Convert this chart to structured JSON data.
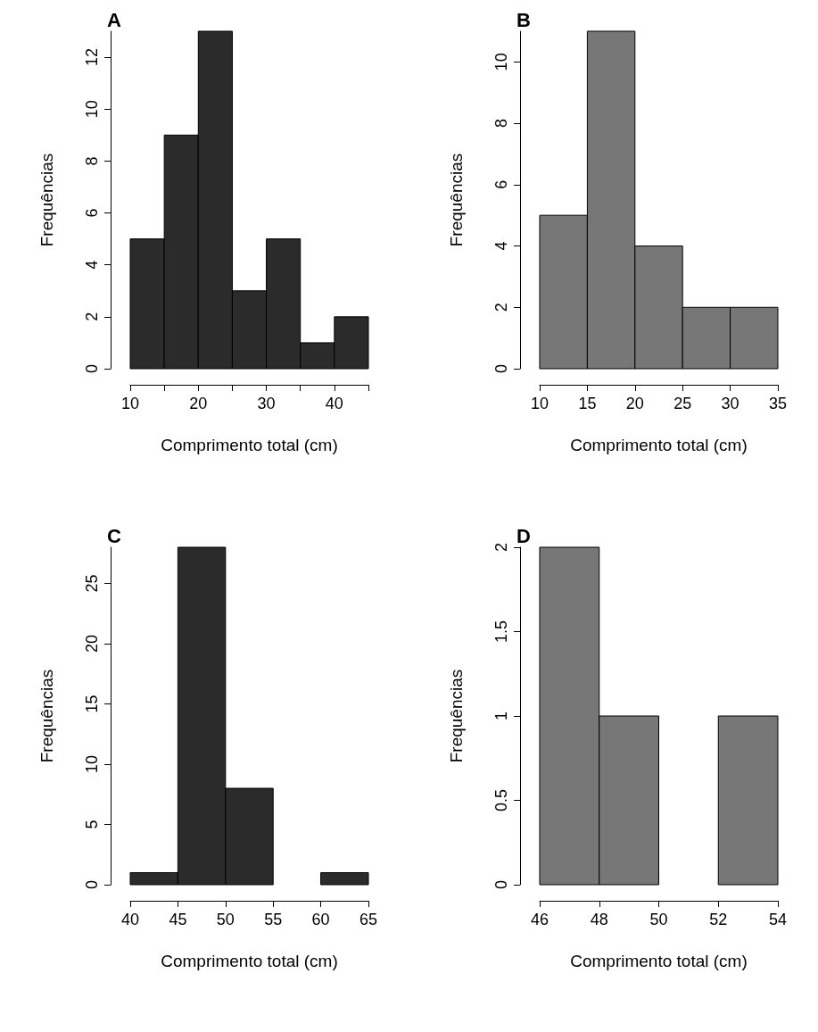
{
  "chart_data": [
    {
      "type": "histogram",
      "title": "A",
      "xlabel": "Comprimento total (cm)",
      "ylabel": "Frequências",
      "color": "#2b2b2b",
      "bins": [
        10,
        15,
        20,
        25,
        30,
        35,
        40,
        45
      ],
      "values": [
        5,
        9,
        13,
        3,
        5,
        1,
        2
      ],
      "xlim": [
        10,
        45
      ],
      "xticks": [
        10,
        20,
        30,
        40
      ],
      "ylim": [
        0,
        13
      ],
      "yticks": [
        0,
        2,
        4,
        6,
        8,
        10,
        12
      ],
      "grid": false
    },
    {
      "type": "histogram",
      "title": "B",
      "xlabel": "Comprimento total (cm)",
      "ylabel": "Frequências",
      "color": "#777777",
      "bins": [
        10,
        15,
        20,
        25,
        30,
        35
      ],
      "values": [
        5,
        11,
        4,
        2,
        2
      ],
      "xlim": [
        10,
        35
      ],
      "xticks": [
        10,
        15,
        20,
        25,
        30,
        35
      ],
      "ylim": [
        0,
        11
      ],
      "yticks": [
        0,
        2,
        4,
        6,
        8,
        10
      ],
      "grid": false
    },
    {
      "type": "histogram",
      "title": "C",
      "xlabel": "Comprimento total (cm)",
      "ylabel": "Frequências",
      "color": "#2b2b2b",
      "bins": [
        40,
        45,
        50,
        55,
        60,
        65
      ],
      "values": [
        1,
        28,
        8,
        0,
        1
      ],
      "xlim": [
        40,
        65
      ],
      "xticks": [
        40,
        45,
        50,
        55,
        60,
        65
      ],
      "ylim": [
        0,
        28
      ],
      "yticks": [
        0,
        5,
        10,
        15,
        20,
        25
      ],
      "grid": false
    },
    {
      "type": "histogram",
      "title": "D",
      "xlabel": "Comprimento total (cm)",
      "ylabel": "Frequências",
      "color": "#777777",
      "bins": [
        46,
        48,
        50,
        52,
        54
      ],
      "values": [
        2,
        1,
        0,
        1
      ],
      "xlim": [
        46,
        54
      ],
      "xticks": [
        46,
        48,
        50,
        52,
        54
      ],
      "ylim": [
        0,
        2
      ],
      "yticks": [
        0,
        0.5,
        1,
        1.5,
        2
      ],
      "grid": false
    }
  ]
}
